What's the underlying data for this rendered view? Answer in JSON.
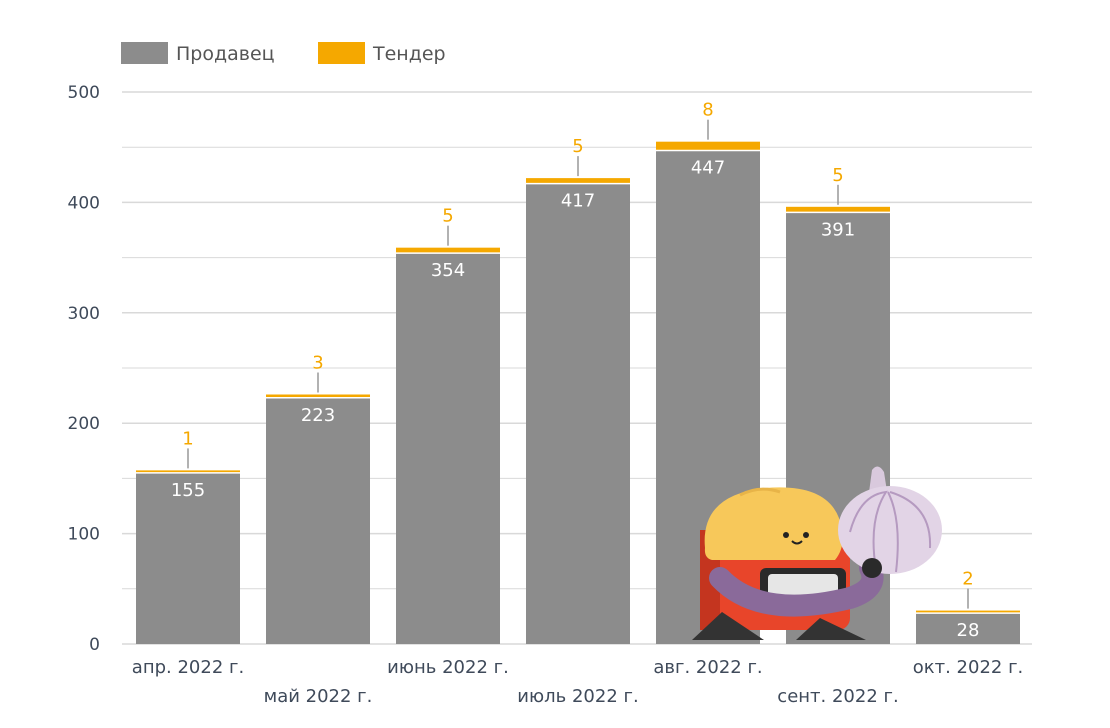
{
  "colors": {
    "seller": "#8c8c8c",
    "tender": "#f5a800",
    "grid": "#d9d9d9",
    "text": "#3f4a5a",
    "inside_label": "#ffffff",
    "top_label": "#f5a800",
    "mascot_body": "#e8452a",
    "mascot_head": "#f7c85a",
    "mascot_arm": "#8a6a9a",
    "garlic": "#d9c9dd"
  },
  "mascot": {
    "icon": "mascot-garlic-icon"
  },
  "chart_data": {
    "type": "bar",
    "stacked": true,
    "categories": [
      "апр. 2022 г.",
      "май 2022 г.",
      "июнь 2022 г.",
      "июль 2022 г.",
      "авг. 2022 г.",
      "сент. 2022 г.",
      "окт. 2022 г."
    ],
    "series": [
      {
        "name": "Продавец",
        "values": [
          155,
          223,
          354,
          417,
          447,
          391,
          28
        ],
        "color": "#8c8c8c"
      },
      {
        "name": "Тендер",
        "values": [
          1,
          3,
          5,
          5,
          8,
          5,
          2
        ],
        "color": "#f5a800"
      }
    ],
    "ylim": [
      0,
      500
    ],
    "yticks": [
      0,
      100,
      200,
      300,
      400,
      500
    ],
    "grid": true,
    "legend": "top-left",
    "title": "",
    "xlabel": "",
    "ylabel": ""
  }
}
